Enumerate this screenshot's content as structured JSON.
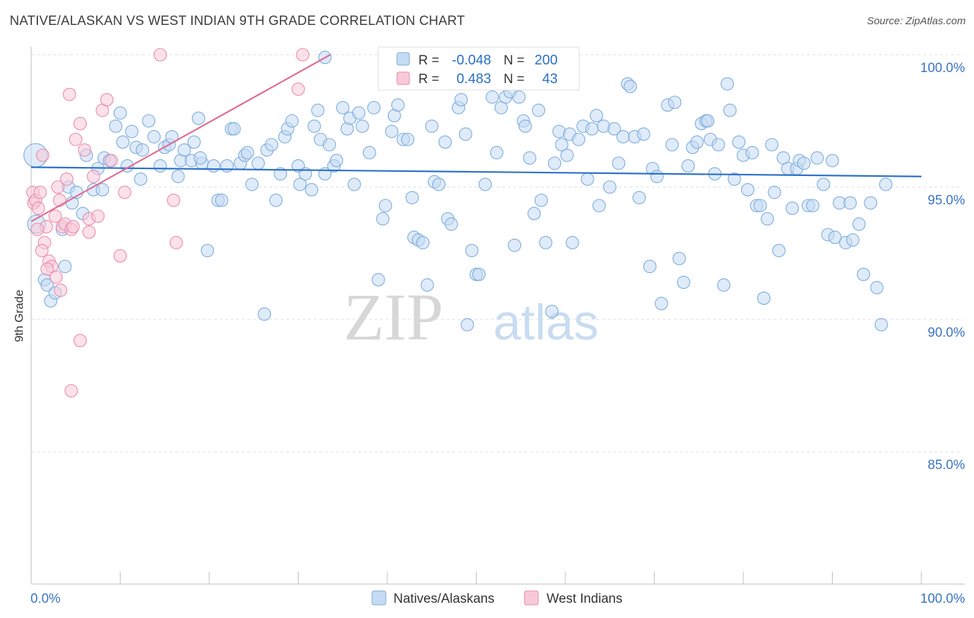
{
  "chart_data": {
    "type": "scatter",
    "title": "NATIVE/ALASKAN VS WEST INDIAN 9TH GRADE CORRELATION CHART",
    "source": "Source: ZipAtlas.com",
    "ylabel": "9th Grade",
    "xlabel": "",
    "xlim": [
      0,
      100
    ],
    "ylim": [
      80.5,
      100.8
    ],
    "x_tick_labels": [
      "0.0%",
      "100.0%"
    ],
    "y_ticks": [
      {
        "value": 100,
        "label": "100.0%"
      },
      {
        "value": 95,
        "label": "95.0%"
      },
      {
        "value": 90,
        "label": "90.0%"
      },
      {
        "value": 85,
        "label": "85.0%"
      }
    ],
    "watermark": {
      "zip": "ZIP",
      "atlas": "atlas"
    },
    "legend_box": {
      "r_label": "R =",
      "n_label": "N =",
      "rows": [
        {
          "series": "Natives/Alaskans",
          "r": "-0.048",
          "n": "200"
        },
        {
          "series": "West Indians",
          "r": "0.483",
          "n": "43"
        }
      ]
    },
    "series": [
      {
        "name": "Natives/Alaskans",
        "color": "#7aaade",
        "fill": "#c5dbf3",
        "line_color": "#2a6fc9",
        "trend": {
          "x": [
            0,
            100
          ],
          "y": [
            95.75,
            95.4
          ]
        },
        "points": [
          [
            0.5,
            96.2
          ],
          [
            0.6,
            93.6
          ],
          [
            1.5,
            91.5
          ],
          [
            1.8,
            91.3
          ],
          [
            2.2,
            90.7
          ],
          [
            2.7,
            91.0
          ],
          [
            3.5,
            93.4
          ],
          [
            3.8,
            92.0
          ],
          [
            4.2,
            95.0
          ],
          [
            4.6,
            94.4
          ],
          [
            5.1,
            94.8
          ],
          [
            5.8,
            94.0
          ],
          [
            6.2,
            96.2
          ],
          [
            7.0,
            94.9
          ],
          [
            7.5,
            95.7
          ],
          [
            8.0,
            94.9
          ],
          [
            8.2,
            96.1
          ],
          [
            8.8,
            96.0
          ],
          [
            9.5,
            97.3
          ],
          [
            10.0,
            97.8
          ],
          [
            10.3,
            96.7
          ],
          [
            10.8,
            95.8
          ],
          [
            11.3,
            97.1
          ],
          [
            11.8,
            96.5
          ],
          [
            12.3,
            95.3
          ],
          [
            12.5,
            96.4
          ],
          [
            13.2,
            97.5
          ],
          [
            13.8,
            96.9
          ],
          [
            14.5,
            95.8
          ],
          [
            15.0,
            96.5
          ],
          [
            15.5,
            96.6
          ],
          [
            15.8,
            96.9
          ],
          [
            16.5,
            95.4
          ],
          [
            16.8,
            96.0
          ],
          [
            17.2,
            96.4
          ],
          [
            18.0,
            96.0
          ],
          [
            18.3,
            96.7
          ],
          [
            18.8,
            97.6
          ],
          [
            19.2,
            95.9
          ],
          [
            19.8,
            92.6
          ],
          [
            20.5,
            95.8
          ],
          [
            21.0,
            94.5
          ],
          [
            21.4,
            94.5
          ],
          [
            22.0,
            95.8
          ],
          [
            22.5,
            97.2
          ],
          [
            22.8,
            97.2
          ],
          [
            23.5,
            95.9
          ],
          [
            24.0,
            96.2
          ],
          [
            24.3,
            96.3
          ],
          [
            24.8,
            95.1
          ],
          [
            25.5,
            95.9
          ],
          [
            26.2,
            90.2
          ],
          [
            26.5,
            96.4
          ],
          [
            27.0,
            96.6
          ],
          [
            27.5,
            94.5
          ],
          [
            28.0,
            95.5
          ],
          [
            28.5,
            96.9
          ],
          [
            28.8,
            97.2
          ],
          [
            29.3,
            97.5
          ],
          [
            30.0,
            95.8
          ],
          [
            30.2,
            95.1
          ],
          [
            30.8,
            95.5
          ],
          [
            31.5,
            94.9
          ],
          [
            31.8,
            97.3
          ],
          [
            32.2,
            97.9
          ],
          [
            32.5,
            96.8
          ],
          [
            33.0,
            95.5
          ],
          [
            33.5,
            96.6
          ],
          [
            34.0,
            95.8
          ],
          [
            34.3,
            96.0
          ],
          [
            35.0,
            98.0
          ],
          [
            35.5,
            97.2
          ],
          [
            35.8,
            97.6
          ],
          [
            36.3,
            95.1
          ],
          [
            36.8,
            97.8
          ],
          [
            37.2,
            97.3
          ],
          [
            38.0,
            96.3
          ],
          [
            38.5,
            98.0
          ],
          [
            39.0,
            91.5
          ],
          [
            39.5,
            93.8
          ],
          [
            39.8,
            94.3
          ],
          [
            40.5,
            97.1
          ],
          [
            40.8,
            97.7
          ],
          [
            41.2,
            98.1
          ],
          [
            41.8,
            96.8
          ],
          [
            42.3,
            96.8
          ],
          [
            42.8,
            94.6
          ],
          [
            43.0,
            93.1
          ],
          [
            43.5,
            93.0
          ],
          [
            44.0,
            92.9
          ],
          [
            44.5,
            91.3
          ],
          [
            45.0,
            97.3
          ],
          [
            45.3,
            95.2
          ],
          [
            45.8,
            95.1
          ],
          [
            46.5,
            96.7
          ],
          [
            46.8,
            93.8
          ],
          [
            47.2,
            93.6
          ],
          [
            48.0,
            98.0
          ],
          [
            48.3,
            98.3
          ],
          [
            48.8,
            97.0
          ],
          [
            49.0,
            89.8
          ],
          [
            49.5,
            92.6
          ],
          [
            50.0,
            91.7
          ],
          [
            50.3,
            91.7
          ],
          [
            51.0,
            95.1
          ],
          [
            51.8,
            98.4
          ],
          [
            52.3,
            96.3
          ],
          [
            52.8,
            98.0
          ],
          [
            53.3,
            98.4
          ],
          [
            53.8,
            98.6
          ],
          [
            54.3,
            92.8
          ],
          [
            54.8,
            98.4
          ],
          [
            55.3,
            97.5
          ],
          [
            55.5,
            97.3
          ],
          [
            56.0,
            96.1
          ],
          [
            56.5,
            94.0
          ],
          [
            57.0,
            97.9
          ],
          [
            57.3,
            94.5
          ],
          [
            57.8,
            92.9
          ],
          [
            58.5,
            90.3
          ],
          [
            58.8,
            95.9
          ],
          [
            59.3,
            97.1
          ],
          [
            59.6,
            96.6
          ],
          [
            60.2,
            96.2
          ],
          [
            60.5,
            97.0
          ],
          [
            60.8,
            92.9
          ],
          [
            61.5,
            96.8
          ],
          [
            62.0,
            97.3
          ],
          [
            62.5,
            95.3
          ],
          [
            63.0,
            97.2
          ],
          [
            63.5,
            97.7
          ],
          [
            63.8,
            94.3
          ],
          [
            64.3,
            97.3
          ],
          [
            65.0,
            95.0
          ],
          [
            65.5,
            97.2
          ],
          [
            66.0,
            95.9
          ],
          [
            66.5,
            96.9
          ],
          [
            67.0,
            98.9
          ],
          [
            67.3,
            98.8
          ],
          [
            67.8,
            96.9
          ],
          [
            68.3,
            94.6
          ],
          [
            68.8,
            97.0
          ],
          [
            69.5,
            92.0
          ],
          [
            69.8,
            95.7
          ],
          [
            70.3,
            95.4
          ],
          [
            70.8,
            90.6
          ],
          [
            71.5,
            98.1
          ],
          [
            72.0,
            96.6
          ],
          [
            72.3,
            98.2
          ],
          [
            72.8,
            92.3
          ],
          [
            73.3,
            91.4
          ],
          [
            73.8,
            95.8
          ],
          [
            74.3,
            96.5
          ],
          [
            74.8,
            96.7
          ],
          [
            75.3,
            97.4
          ],
          [
            75.8,
            97.5
          ],
          [
            76.3,
            96.8
          ],
          [
            76.8,
            95.5
          ],
          [
            77.2,
            96.6
          ],
          [
            77.8,
            91.3
          ],
          [
            78.2,
            98.9
          ],
          [
            78.5,
            97.9
          ],
          [
            79.0,
            95.3
          ],
          [
            79.5,
            96.7
          ],
          [
            80.0,
            96.2
          ],
          [
            80.5,
            94.9
          ],
          [
            81.0,
            96.3
          ],
          [
            81.5,
            94.3
          ],
          [
            81.9,
            94.3
          ],
          [
            82.3,
            90.8
          ],
          [
            82.7,
            93.8
          ],
          [
            83.2,
            96.6
          ],
          [
            83.5,
            94.8
          ],
          [
            84.0,
            92.6
          ],
          [
            84.5,
            96.1
          ],
          [
            85.0,
            95.7
          ],
          [
            85.5,
            94.2
          ],
          [
            86.0,
            95.7
          ],
          [
            86.3,
            96.0
          ],
          [
            86.8,
            95.9
          ],
          [
            87.3,
            94.3
          ],
          [
            87.8,
            94.3
          ],
          [
            88.3,
            96.1
          ],
          [
            89.0,
            95.1
          ],
          [
            89.5,
            93.2
          ],
          [
            90.0,
            96.0
          ],
          [
            90.3,
            93.1
          ],
          [
            90.8,
            94.4
          ],
          [
            91.5,
            92.9
          ],
          [
            92.0,
            94.4
          ],
          [
            92.3,
            93.0
          ],
          [
            93.0,
            93.6
          ],
          [
            93.5,
            91.7
          ],
          [
            94.3,
            94.4
          ],
          [
            95.0,
            91.2
          ],
          [
            95.5,
            89.8
          ],
          [
            96.0,
            95.1
          ],
          [
            76.0,
            97.5
          ],
          [
            33.0,
            99.9
          ],
          [
            19.0,
            96.1
          ]
        ]
      },
      {
        "name": "West Indians",
        "color": "#e98aa8",
        "fill": "#f8c9d8",
        "line_color": "#e06b95",
        "trend": {
          "x": [
            0,
            33.6
          ],
          "y": [
            93.7,
            100.0
          ]
        },
        "points": [
          [
            0.2,
            94.8
          ],
          [
            0.3,
            94.4
          ],
          [
            0.5,
            94.5
          ],
          [
            0.8,
            94.2
          ],
          [
            1.0,
            94.8
          ],
          [
            1.3,
            96.2
          ],
          [
            1.5,
            92.9
          ],
          [
            1.7,
            93.5
          ],
          [
            2.0,
            92.2
          ],
          [
            2.3,
            92.0
          ],
          [
            2.7,
            93.9
          ],
          [
            3.0,
            95.0
          ],
          [
            3.2,
            94.5
          ],
          [
            3.5,
            93.5
          ],
          [
            3.8,
            93.6
          ],
          [
            4.0,
            95.3
          ],
          [
            4.3,
            98.5
          ],
          [
            4.5,
            93.4
          ],
          [
            4.7,
            93.5
          ],
          [
            5.0,
            96.8
          ],
          [
            5.5,
            97.4
          ],
          [
            6.0,
            96.4
          ],
          [
            6.5,
            93.8
          ],
          [
            7.0,
            95.4
          ],
          [
            8.0,
            97.9
          ],
          [
            8.5,
            98.3
          ],
          [
            9.0,
            96.0
          ],
          [
            10.0,
            92.4
          ],
          [
            10.5,
            94.8
          ],
          [
            14.5,
            100.0
          ],
          [
            16.0,
            94.5
          ],
          [
            16.3,
            92.9
          ],
          [
            5.5,
            89.2
          ],
          [
            4.5,
            87.3
          ],
          [
            1.8,
            91.9
          ],
          [
            2.8,
            91.6
          ],
          [
            3.3,
            91.1
          ],
          [
            0.7,
            93.4
          ],
          [
            1.2,
            92.6
          ],
          [
            6.5,
            93.3
          ],
          [
            7.5,
            93.9
          ],
          [
            30.0,
            98.7
          ],
          [
            30.5,
            100.0
          ]
        ]
      }
    ]
  }
}
